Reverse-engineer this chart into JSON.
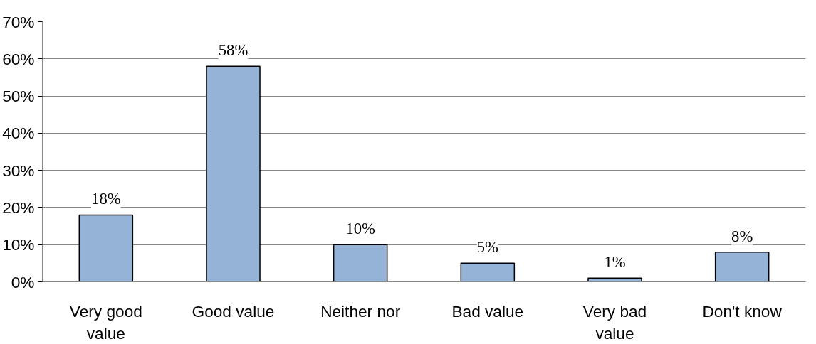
{
  "chart_data": {
    "type": "bar",
    "categories": [
      "Very good value",
      "Good value",
      "Neither nor",
      "Bad value",
      "Very bad value",
      "Don't know"
    ],
    "values": [
      18,
      58,
      10,
      5,
      1,
      8
    ],
    "color": "#95b3d7",
    "ylim": [
      0,
      70
    ],
    "yticks": [
      {
        "value": 0,
        "label": "0%"
      },
      {
        "value": 10,
        "label": "10%"
      },
      {
        "value": 20,
        "label": "20%"
      },
      {
        "value": 30,
        "label": "30%"
      },
      {
        "value": 40,
        "label": "40%"
      },
      {
        "value": 50,
        "label": "50%"
      },
      {
        "value": 60,
        "label": "60%"
      },
      {
        "value": 70,
        "label": "70%"
      }
    ],
    "grid": "y",
    "data_labels": true,
    "value_labels": [
      "18%",
      "58%",
      "10%",
      "5%",
      "1%",
      "8%"
    ]
  }
}
